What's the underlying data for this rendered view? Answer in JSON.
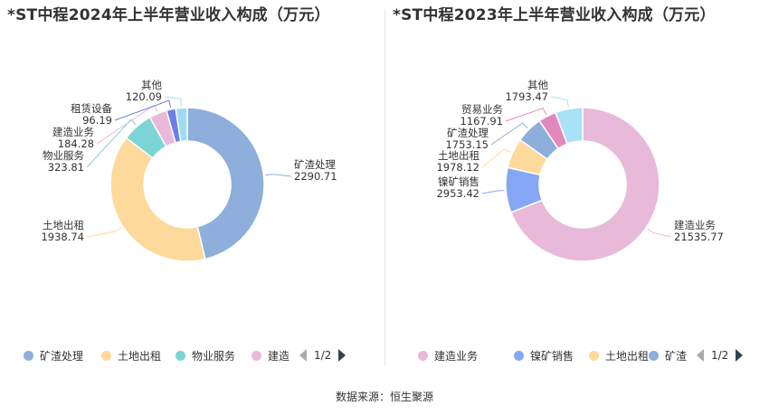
{
  "chart_data": [
    {
      "type": "pie",
      "title": "*ST中程2024年上半年营业收入构成（万元）",
      "slices": [
        {
          "name": "矿渣处理",
          "value": 2290.71,
          "value_label": "2290.71",
          "color": "#8eaedb"
        },
        {
          "name": "土地出租",
          "value": 1938.74,
          "value_label": "1938.74",
          "color": "#fdd99b"
        },
        {
          "name": "物业服务",
          "value": 323.81,
          "value_label": "323.81",
          "color": "#7dd4d6"
        },
        {
          "name": "建造业务",
          "value": 184.28,
          "value_label": "184.28",
          "color": "#e8b9d9"
        },
        {
          "name": "租赁设备",
          "value": 96.19,
          "value_label": "96.19",
          "color": "#6b7fe6"
        },
        {
          "name": "其他",
          "value": 120.09,
          "value_label": "120.09",
          "color": "#9fdcf3"
        }
      ],
      "legend": {
        "position": "bottom",
        "visible_items": [
          "矿渣处理",
          "土地出租",
          "物业服务",
          "建造"
        ],
        "page": "1/2"
      }
    },
    {
      "type": "pie",
      "title": "*ST中程2023年上半年营业收入构成（万元）",
      "slices": [
        {
          "name": "建造业务",
          "value": 21535.77,
          "value_label": "21535.77",
          "color": "#e8b9d9"
        },
        {
          "name": "镍矿销售",
          "value": 2953.42,
          "value_label": "2953.42",
          "color": "#86a7f5"
        },
        {
          "name": "土地出租",
          "value": 1978.12,
          "value_label": "1978.12",
          "color": "#fdd99b"
        },
        {
          "name": "矿渣处理",
          "value": 1753.15,
          "value_label": "1753.15",
          "color": "#8eaedb"
        },
        {
          "name": "贸易业务",
          "value": 1167.91,
          "value_label": "1167.91",
          "color": "#e387bf"
        },
        {
          "name": "其他",
          "value": 1793.47,
          "value_label": "1793.47",
          "color": "#a9e1f7"
        }
      ],
      "legend": {
        "position": "bottom",
        "visible_items": [
          "建造业务",
          "镍矿销售",
          "土地出租",
          "矿渣"
        ],
        "page": "1/2"
      }
    }
  ],
  "footer": {
    "source": "数据来源：恒生聚源"
  }
}
